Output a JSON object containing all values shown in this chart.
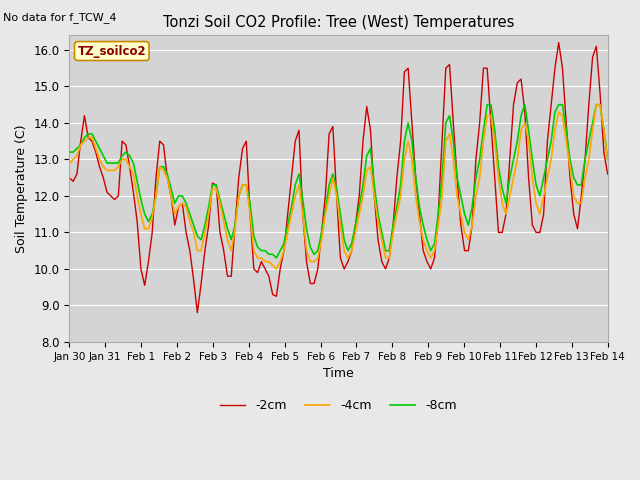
{
  "title": "Tonzi Soil CO2 Profile: Tree (West) Temperatures",
  "subtitle": "No data for f_TCW_4",
  "ylabel": "Soil Temperature (C)",
  "xlabel": "Time",
  "annotation": "TZ_soilco2",
  "ylim": [
    8.0,
    16.4
  ],
  "yticks": [
    8.0,
    9.0,
    10.0,
    11.0,
    12.0,
    13.0,
    14.0,
    15.0,
    16.0
  ],
  "xtick_labels": [
    "Jan 30",
    "Jan 31",
    "Feb 1",
    "Feb 2",
    "Feb 3",
    "Feb 4",
    "Feb 5",
    "Feb 6",
    "Feb 7",
    "Feb 8",
    "Feb 9",
    "Feb 10",
    "Feb 11",
    "Feb 12",
    "Feb 13",
    "Feb 14"
  ],
  "colors": {
    "2cm": "#cc0000",
    "4cm": "#ffa500",
    "8cm": "#00cc00"
  },
  "line_widths": {
    "2cm": 1.0,
    "4cm": 1.2,
    "8cm": 1.2
  },
  "legend_labels": [
    "-2cm",
    "-4cm",
    "-8cm"
  ],
  "background_color": "#e8e8e8",
  "plot_bg_color": "#d4d4d4",
  "t_2cm": [
    12.5,
    12.4,
    12.6,
    13.5,
    14.2,
    13.6,
    13.5,
    13.2,
    12.8,
    12.5,
    12.1,
    12.0,
    11.9,
    12.0,
    13.5,
    13.4,
    12.8,
    12.1,
    11.3,
    10.0,
    9.55,
    10.2,
    11.0,
    12.5,
    13.5,
    13.4,
    12.5,
    12.0,
    11.2,
    11.7,
    11.8,
    11.0,
    10.5,
    9.7,
    8.8,
    9.6,
    10.5,
    11.2,
    12.35,
    12.3,
    11.0,
    10.5,
    9.8,
    9.8,
    11.2,
    12.5,
    13.3,
    13.5,
    11.5,
    10.0,
    9.9,
    10.2,
    10.0,
    9.8,
    9.3,
    9.25,
    10.0,
    10.5,
    11.5,
    12.5,
    13.5,
    13.8,
    11.5,
    10.2,
    9.6,
    9.6,
    10.0,
    11.0,
    12.0,
    13.7,
    13.9,
    12.0,
    10.3,
    10.0,
    10.2,
    10.5,
    11.2,
    12.0,
    13.5,
    14.45,
    13.8,
    12.0,
    10.8,
    10.2,
    10.0,
    10.3,
    11.2,
    12.5,
    13.5,
    15.4,
    15.5,
    14.0,
    12.5,
    11.5,
    10.5,
    10.2,
    10.0,
    10.3,
    11.5,
    13.5,
    15.5,
    15.6,
    14.0,
    12.5,
    11.2,
    10.5,
    10.5,
    11.2,
    13.0,
    14.0,
    15.5,
    15.5,
    14.0,
    12.5,
    11.0,
    11.0,
    11.5,
    13.0,
    14.5,
    15.1,
    15.2,
    14.3,
    12.5,
    11.2,
    11.0,
    11.0,
    11.5,
    13.5,
    14.5,
    15.5,
    16.2,
    15.5,
    14.0,
    12.5,
    11.5,
    11.1,
    12.0,
    13.0,
    14.5,
    15.8,
    16.1,
    14.8,
    13.2,
    12.6
  ],
  "t_4cm": [
    12.9,
    13.0,
    13.1,
    13.4,
    13.5,
    13.6,
    13.6,
    13.3,
    13.0,
    12.8,
    12.7,
    12.7,
    12.7,
    12.8,
    13.0,
    13.0,
    12.8,
    12.6,
    12.0,
    11.5,
    11.1,
    11.1,
    11.4,
    12.0,
    12.8,
    12.7,
    12.5,
    12.0,
    11.5,
    11.7,
    11.8,
    11.7,
    11.3,
    11.0,
    10.5,
    10.5,
    11.0,
    11.5,
    12.2,
    12.2,
    11.8,
    11.3,
    10.8,
    10.5,
    11.1,
    12.0,
    12.3,
    12.3,
    11.5,
    10.5,
    10.3,
    10.3,
    10.2,
    10.2,
    10.1,
    10.0,
    10.2,
    10.5,
    11.0,
    11.5,
    12.0,
    12.3,
    11.5,
    10.5,
    10.2,
    10.2,
    10.3,
    10.8,
    11.5,
    12.0,
    12.5,
    12.0,
    11.2,
    10.5,
    10.3,
    10.5,
    11.0,
    11.5,
    12.0,
    12.7,
    12.8,
    12.0,
    11.3,
    10.8,
    10.3,
    10.3,
    11.0,
    11.5,
    12.0,
    13.0,
    13.5,
    13.0,
    12.0,
    11.3,
    10.8,
    10.5,
    10.3,
    10.5,
    11.2,
    12.0,
    13.5,
    13.7,
    13.0,
    12.0,
    11.5,
    11.0,
    10.8,
    11.2,
    12.0,
    12.5,
    13.5,
    14.2,
    14.2,
    13.5,
    12.5,
    11.8,
    11.5,
    12.0,
    12.5,
    13.0,
    13.8,
    14.0,
    13.5,
    12.5,
    11.8,
    11.5,
    12.0,
    12.5,
    13.0,
    13.8,
    14.3,
    14.2,
    13.5,
    12.8,
    12.0,
    11.8,
    11.8,
    12.5,
    13.0,
    13.8,
    14.5,
    14.5,
    13.8,
    13.0
  ],
  "t_8cm": [
    13.2,
    13.2,
    13.3,
    13.4,
    13.6,
    13.7,
    13.7,
    13.5,
    13.3,
    13.1,
    12.9,
    12.9,
    12.9,
    12.9,
    13.1,
    13.2,
    13.1,
    12.9,
    12.4,
    11.9,
    11.5,
    11.3,
    11.5,
    12.0,
    12.8,
    12.8,
    12.6,
    12.2,
    11.8,
    12.0,
    12.0,
    11.8,
    11.5,
    11.2,
    10.9,
    10.8,
    11.2,
    11.7,
    12.3,
    12.3,
    11.9,
    11.5,
    11.1,
    10.8,
    11.2,
    12.0,
    12.3,
    12.3,
    11.8,
    10.9,
    10.6,
    10.5,
    10.5,
    10.4,
    10.4,
    10.3,
    10.5,
    10.7,
    11.2,
    11.7,
    12.3,
    12.6,
    11.9,
    11.1,
    10.6,
    10.4,
    10.5,
    11.0,
    11.6,
    12.3,
    12.6,
    12.2,
    11.5,
    10.8,
    10.5,
    10.7,
    11.2,
    11.7,
    12.3,
    13.1,
    13.3,
    12.3,
    11.5,
    11.0,
    10.5,
    10.5,
    11.2,
    11.7,
    12.3,
    13.5,
    14.0,
    13.5,
    12.5,
    11.7,
    11.2,
    10.8,
    10.5,
    10.7,
    11.5,
    12.5,
    14.0,
    14.2,
    13.5,
    12.5,
    12.0,
    11.5,
    11.2,
    11.7,
    12.5,
    13.0,
    13.8,
    14.5,
    14.5,
    13.8,
    12.8,
    12.2,
    11.8,
    12.5,
    13.0,
    13.5,
    14.2,
    14.5,
    13.8,
    13.0,
    12.3,
    12.0,
    12.5,
    13.0,
    13.5,
    14.3,
    14.5,
    14.5,
    13.8,
    13.0,
    12.5,
    12.3,
    12.3,
    13.0,
    13.5,
    14.0,
    14.5,
    14.5,
    13.8,
    13.0
  ]
}
